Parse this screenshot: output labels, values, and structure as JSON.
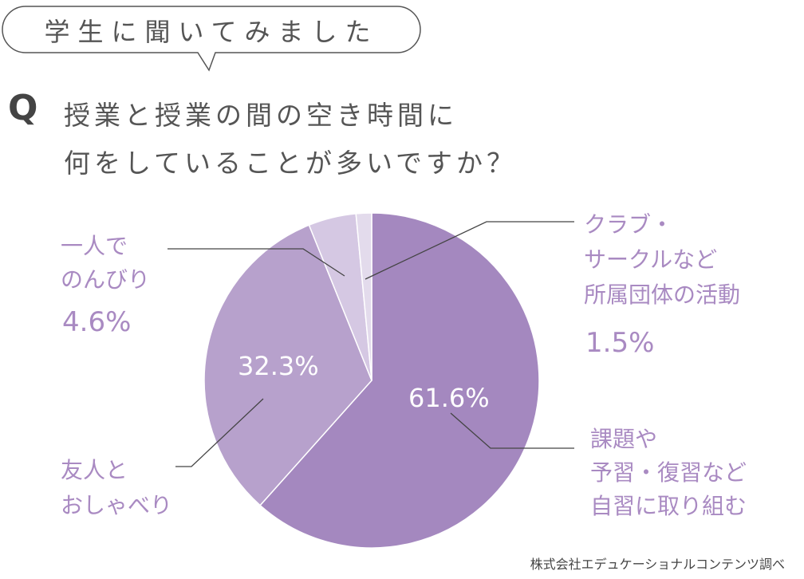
{
  "header": {
    "bubble_text": "学生に聞いてみました",
    "q_mark": "Q",
    "question_line1": "授業と授業の間の空き時間に",
    "question_line2": "何をしていることが多いですか？"
  },
  "chart_data": {
    "type": "pie",
    "slices": [
      {
        "label": "課題や 予習・復習など 自習に取り組む",
        "value": 61.6,
        "display": "61.6%",
        "color": "#a488bf"
      },
      {
        "label": "友人と おしゃべり",
        "value": 32.3,
        "display": "32.3%",
        "color": "#b7a1cc"
      },
      {
        "label": "一人で のんびり",
        "value": 4.6,
        "display": "4.6%",
        "color": "#d5c8e3"
      },
      {
        "label": "クラブ・ サークルなど 所属団体の活動",
        "value": 1.5,
        "display": "1.5%",
        "color": "#e3dbec"
      }
    ]
  },
  "labels": {
    "s0_lines": [
      "課題や",
      "予習・復習など",
      "自習に取り組む"
    ],
    "s1_lines": [
      "友人と",
      "おしゃべり"
    ],
    "s2_lines": [
      "一人で",
      "のんびり"
    ],
    "s3_lines": [
      "クラブ・",
      "サークルなど",
      "所属団体の活動"
    ]
  },
  "footer": {
    "source": "株式会社エデュケーショナルコンテンツ調べ"
  }
}
